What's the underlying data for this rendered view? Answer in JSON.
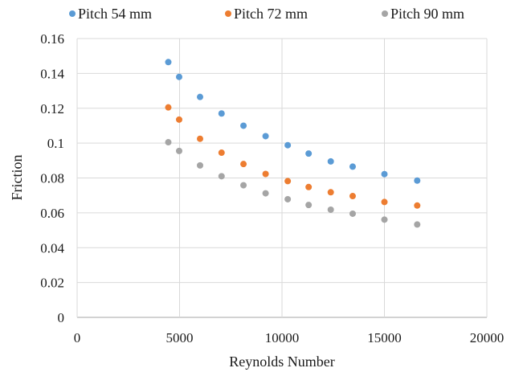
{
  "chart_data": {
    "type": "scatter",
    "title": "",
    "xlabel": "Reynolds Number",
    "ylabel": "Friction",
    "xlim": [
      0,
      20000
    ],
    "ylim": [
      0,
      0.16
    ],
    "xticks": [
      "0",
      "5000",
      "10000",
      "15000",
      "20000"
    ],
    "yticks": [
      "0",
      "0.02",
      "0.04",
      "0.06",
      "0.08",
      "0.1",
      "0.12",
      "0.14",
      "0.16"
    ],
    "xtick_values": [
      0,
      5000,
      10000,
      15000,
      20000
    ],
    "ytick_values": [
      0,
      0.02,
      0.04,
      0.06,
      0.08,
      0.1,
      0.12,
      0.14,
      0.16
    ],
    "grid": true,
    "legend_position": "top",
    "series": [
      {
        "name": "Pitch 54 mm",
        "color": "#5b9bd5",
        "x": [
          4450,
          4980,
          6000,
          7050,
          8120,
          9200,
          10280,
          11300,
          12380,
          13450,
          15000,
          16600
        ],
        "y": [
          0.1465,
          0.138,
          0.1265,
          0.117,
          0.11,
          0.104,
          0.0988,
          0.094,
          0.0895,
          0.0865,
          0.0822,
          0.0785
        ]
      },
      {
        "name": "Pitch 72 mm",
        "color": "#ed7d31",
        "x": [
          4450,
          4980,
          6000,
          7050,
          8120,
          9200,
          10280,
          11300,
          12380,
          13450,
          15000,
          16600
        ],
        "y": [
          0.1205,
          0.1135,
          0.1025,
          0.0945,
          0.088,
          0.0823,
          0.0782,
          0.0748,
          0.0718,
          0.0696,
          0.0662,
          0.0642
        ]
      },
      {
        "name": "Pitch 90 mm",
        "color": "#a5a5a5",
        "x": [
          4450,
          4980,
          6000,
          7050,
          8120,
          9200,
          10280,
          11300,
          12380,
          13450,
          15000,
          16600
        ],
        "y": [
          0.1005,
          0.0955,
          0.0872,
          0.081,
          0.0758,
          0.0712,
          0.0678,
          0.0645,
          0.0618,
          0.0595,
          0.0561,
          0.0533
        ]
      }
    ]
  }
}
